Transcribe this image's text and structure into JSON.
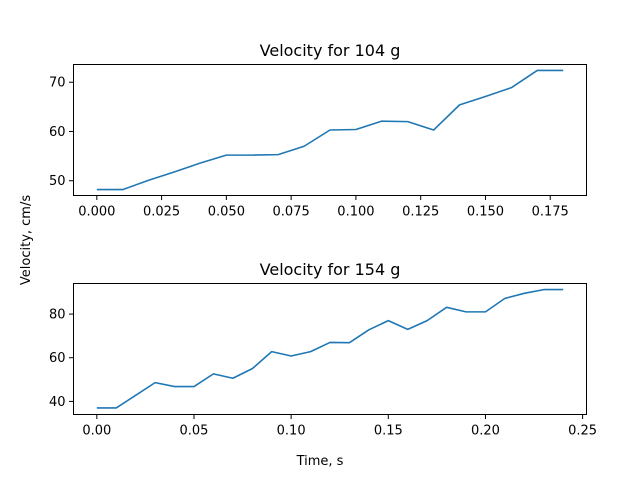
{
  "figure": {
    "shared_ylabel": "Velocity, cm/s",
    "shared_xlabel": "Time, s"
  },
  "chart_data": [
    {
      "type": "line",
      "title": "Velocity for 104 g",
      "xlabel": "",
      "ylabel": "",
      "xlim": [
        -0.009,
        0.189
      ],
      "ylim": [
        47.0,
        73.6
      ],
      "xticks": [
        0.0,
        0.025,
        0.05,
        0.075,
        0.1,
        0.125,
        0.15,
        0.175
      ],
      "xtick_labels": [
        "0.000",
        "0.025",
        "0.050",
        "0.075",
        "0.100",
        "0.125",
        "0.150",
        "0.175"
      ],
      "yticks": [
        50,
        60,
        70
      ],
      "ytick_labels": [
        "50",
        "60",
        "70"
      ],
      "color": "#1f77b4",
      "series": [
        {
          "name": "104 g",
          "x": [
            0.0,
            0.01,
            0.02,
            0.03,
            0.04,
            0.05,
            0.06,
            0.07,
            0.08,
            0.09,
            0.1,
            0.11,
            0.12,
            0.13,
            0.14,
            0.15,
            0.16,
            0.17,
            0.18
          ],
          "y": [
            48.2,
            48.2,
            50.1,
            51.8,
            53.6,
            55.2,
            55.2,
            55.3,
            57.0,
            60.3,
            60.4,
            62.1,
            62.0,
            60.3,
            65.4,
            67.1,
            68.9,
            72.4,
            72.4
          ]
        }
      ]
    },
    {
      "type": "line",
      "title": "Velocity for 154 g",
      "xlabel": "Time, s",
      "ylabel": "",
      "xlim": [
        -0.012,
        0.252
      ],
      "ylim": [
        34.0,
        94.0
      ],
      "xticks": [
        0.0,
        0.05,
        0.1,
        0.15,
        0.2,
        0.25
      ],
      "xtick_labels": [
        "0.00",
        "0.05",
        "0.10",
        "0.15",
        "0.20",
        "0.25"
      ],
      "yticks": [
        40,
        60,
        80
      ],
      "ytick_labels": [
        "40",
        "60",
        "80"
      ],
      "color": "#1f77b4",
      "series": [
        {
          "name": "154 g",
          "x": [
            0.0,
            0.01,
            0.02,
            0.03,
            0.04,
            0.05,
            0.06,
            0.07,
            0.08,
            0.09,
            0.1,
            0.11,
            0.12,
            0.13,
            0.14,
            0.15,
            0.16,
            0.17,
            0.18,
            0.19,
            0.2,
            0.21,
            0.22,
            0.23,
            0.24
          ],
          "y": [
            37.0,
            37.0,
            42.8,
            48.6,
            46.8,
            46.8,
            52.6,
            50.6,
            55.0,
            62.8,
            60.8,
            62.8,
            67.0,
            66.9,
            72.8,
            77.0,
            73.0,
            77.0,
            83.1,
            81.0,
            81.0,
            87.2,
            89.5,
            91.2,
            91.2
          ]
        }
      ]
    }
  ]
}
